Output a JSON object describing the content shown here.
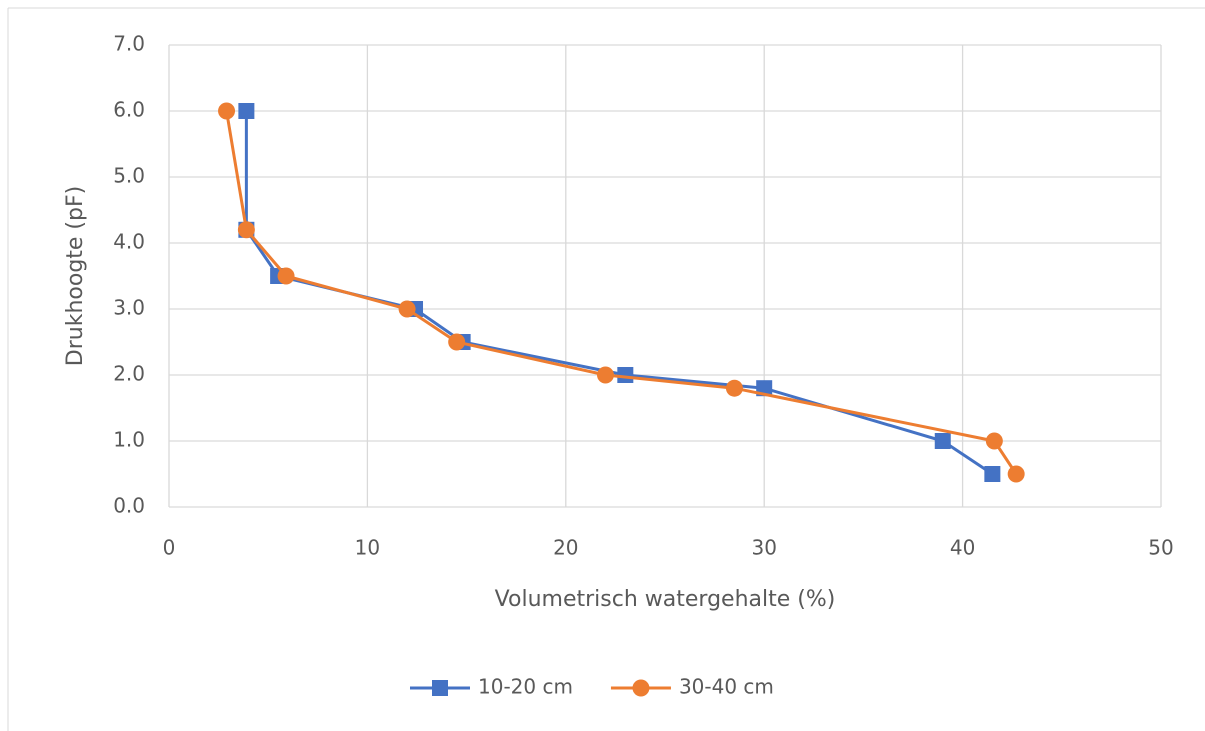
{
  "chart_data": {
    "type": "line",
    "x_label": "Volumetrisch watergehalte (%)",
    "y_label": "Drukhoogte (pF)",
    "xlim": [
      0,
      50
    ],
    "xticks": [
      0,
      10,
      20,
      30,
      40,
      50
    ],
    "ylim": [
      0,
      7
    ],
    "yticks": [
      {
        "value": 0,
        "label": "0.0"
      },
      {
        "value": 1,
        "label": "1.0"
      },
      {
        "value": 2,
        "label": "2.0"
      },
      {
        "value": 3,
        "label": "3.0"
      },
      {
        "value": 4,
        "label": "4.0"
      },
      {
        "value": 5,
        "label": "5.0"
      },
      {
        "value": 6,
        "label": "6.0"
      },
      {
        "value": 7,
        "label": "7.0"
      }
    ],
    "grid": true,
    "legend": "bottom",
    "series": [
      {
        "name": "10-20 cm",
        "color": "#4472c4",
        "marker": "square",
        "x": [
          3.9,
          3.9,
          5.5,
          12.4,
          14.8,
          23.0,
          30.0,
          39.0,
          41.5
        ],
        "values": [
          6.0,
          4.2,
          3.5,
          3.0,
          2.5,
          2.0,
          1.8,
          1.0,
          0.5
        ]
      },
      {
        "name": "30-40 cm",
        "color": "#ed7d31",
        "marker": "circle",
        "x": [
          2.9,
          3.9,
          5.9,
          12.0,
          14.5,
          22.0,
          28.5,
          41.6,
          42.7
        ],
        "values": [
          6.0,
          4.2,
          3.5,
          3.0,
          2.5,
          2.0,
          1.8,
          1.0,
          0.5
        ]
      }
    ]
  }
}
